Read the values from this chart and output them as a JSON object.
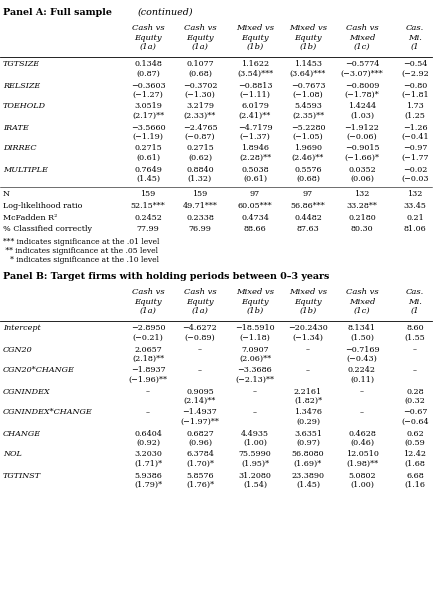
{
  "panel_a_title": "Panel A: Full sample",
  "panel_a_title_italic": "(continued)",
  "panel_b_title": "Panel B: Target firms with holding periods between 0–3 years",
  "col_headers_line1": [
    "Cash vs",
    "Cash vs",
    "Mixed vs",
    "Mixed vs",
    "Cash vs",
    "Cas."
  ],
  "col_headers_line2": [
    "Equity",
    "Equity",
    "Equity",
    "Equity",
    "Mixed",
    "Mi."
  ],
  "col_headers_line3": [
    "(1a)",
    "(1a)",
    "(1b)",
    "(1b)",
    "(1c)",
    "(1"
  ],
  "panel_a_rows": [
    {
      "label": "TGTSIZE",
      "values": [
        "0.1348",
        "0.1077",
        "1.1622",
        "1.1453",
        "−0.5774",
        "−0.54"
      ],
      "stats": [
        "(0.87)",
        "(0.68)",
        "(3.54)***",
        "(3.64)***",
        "(−3.07)***",
        "(−2.92"
      ]
    },
    {
      "label": "RELSIZE",
      "values": [
        "−0.3603",
        "−0.3702",
        "−0.8813",
        "−0.7673",
        "−0.8009",
        "−0.80"
      ],
      "stats": [
        "(−1.27)",
        "(−1.30)",
        "(−1.11)",
        "(−1.08)",
        "(−1.78)*",
        "(−1.81"
      ]
    },
    {
      "label": "TOEHOLD",
      "values": [
        "3.0519",
        "3.2179",
        "6.0179",
        "5.4593",
        "1.4244",
        "1.73"
      ],
      "stats": [
        "(2.17)**",
        "(2.33)**",
        "(2.41)**",
        "(2.35)**",
        "(1.03)",
        "(1.25"
      ]
    },
    {
      "label": "IRATE",
      "values": [
        "−3.5660",
        "−2.4765",
        "−4.7179",
        "−5.2280",
        "−1.9122",
        "−1.26"
      ],
      "stats": [
        "(−1.19)",
        "(−0.87)",
        "(−1.37)",
        "(−1.05)",
        "(−0.06)",
        "(−0.41"
      ]
    },
    {
      "label": "DIRREC",
      "values": [
        "0.2715",
        "0.2715",
        "1.8946",
        "1.9690",
        "−0.9015",
        "−0.97"
      ],
      "stats": [
        "(0.61)",
        "(0.62)",
        "(2.28)**",
        "(2.46)**",
        "(−1.66)*",
        "(−1.77"
      ]
    },
    {
      "label": "MULTIPLE",
      "values": [
        "0.7649",
        "0.8840",
        "0.5038",
        "0.5576",
        "0.0352",
        "−0.02"
      ],
      "stats": [
        "(1.45)",
        "(1.32)",
        "(0.61)",
        "(0.68)",
        "(0.06)",
        "(−0.03"
      ]
    }
  ],
  "panel_a_stat_rows": [
    {
      "label": "N",
      "values": [
        "159",
        "159",
        "97",
        "97",
        "132",
        "132"
      ]
    },
    {
      "label": "Log-likelihood ratio",
      "values": [
        "52.15***",
        "49.71***",
        "60.05***",
        "56.86***",
        "33.28**",
        "33.45"
      ]
    },
    {
      "label": "McFadden R²",
      "values": [
        "0.2452",
        "0.2338",
        "0.4734",
        "0.4482",
        "0.2180",
        "0.21"
      ]
    },
    {
      "label": "% Classified correctly",
      "values": [
        "77.99",
        "76.99",
        "88.66",
        "87.63",
        "80.30",
        "81.06"
      ]
    }
  ],
  "footnotes": [
    "*** indicates significance at the .01 level",
    " ** indicates significance at the .05 level",
    "   * indicates significance at the .10 level"
  ],
  "panel_b_rows": [
    {
      "label": "Intercept",
      "values": [
        "−2.8950",
        "−4.6272",
        "−18.5910",
        "−20.2430",
        "8.1341",
        "8.60"
      ],
      "stats": [
        "(−0.21)",
        "(−0.89)",
        "(−1.18)",
        "(−1.34)",
        "(1.50)",
        "(1.55"
      ]
    },
    {
      "label": "CGN20",
      "values": [
        "2.0657",
        "–",
        "7.0907",
        "–",
        "−0.7169",
        "–"
      ],
      "stats": [
        "(2.18)**",
        "",
        "(2.06)**",
        "",
        "(−0.43)",
        ""
      ]
    },
    {
      "label": "CGN20*CHANGE",
      "values": [
        "−1.8937",
        "–",
        "−3.3686",
        "–",
        "0.2242",
        "–"
      ],
      "stats": [
        "(−1.96)**",
        "",
        "(−2.13)**",
        "",
        "(0.11)",
        ""
      ]
    },
    {
      "label": "CGNINDEX",
      "values": [
        "–",
        "0.9095",
        "–",
        "2.2161",
        "–",
        "0.28"
      ],
      "stats": [
        "",
        "(2.14)**",
        "",
        "(1.82)*",
        "",
        "(0.32"
      ]
    },
    {
      "label": "CGNINDEX*CHANGE",
      "values": [
        "–",
        "−1.4937",
        "–",
        "1.3476",
        "–",
        "−0.67"
      ],
      "stats": [
        "",
        "(−1.97)**",
        "",
        "(0.29)",
        "",
        "(−0.64"
      ]
    },
    {
      "label": "CHANGE",
      "values": [
        "0.6404",
        "0.6827",
        "4.4935",
        "3.6351",
        "0.4628",
        "0.62"
      ],
      "stats": [
        "(0.92)",
        "(0.96)",
        "(1.00)",
        "(0.97)",
        "(0.46)",
        "(0.59"
      ]
    },
    {
      "label": "NOL",
      "values": [
        "3.2030",
        "6.3784",
        "75.5990",
        "56.8080",
        "12.0510",
        "12.42"
      ],
      "stats": [
        "(1.71)*",
        "(1.70)*",
        "(1.95)*",
        "(1.69)*",
        "(1.98)**",
        "(1.68"
      ]
    },
    {
      "label": "TGTINST",
      "values": [
        "5.9386",
        "5.8576",
        "31.2080",
        "23.3890",
        "5.0802",
        "6.68"
      ],
      "stats": [
        "(1.79)*",
        "(1.76)*",
        "(1.54)",
        "(1.45)",
        "(1.00)",
        "(1.16"
      ]
    }
  ],
  "bg_color": "#ffffff",
  "text_color": "#000000"
}
